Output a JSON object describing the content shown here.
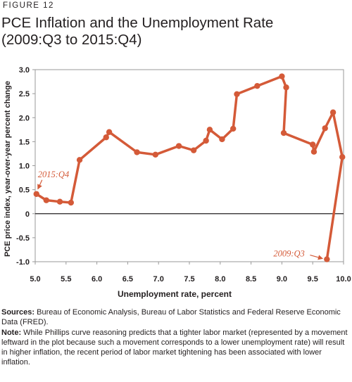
{
  "figure_label": "FIGURE 12",
  "title_line1": "PCE Inflation and the Unemployment Rate",
  "title_line2": "(2009:Q3 to 2015:Q4)",
  "sources_label": "Sources:",
  "sources_text": "Bureau of Economic Analysis, Bureau of Labor Statistics and Federal Reserve Economic Data (FRED).",
  "note_label": "Note:",
  "note_text": "While Phillips curve reasoning predicts that a tighter labor market (represented by a movement leftward in the plot because such a movement corresponds to a lower unemployment rate) will result in higher inflation, the recent period of labor market tightening has been associated with lower inflation.",
  "colors": {
    "line": "#d45a38",
    "annotation": "#d45a38",
    "axis": "#231f20"
  },
  "chart_data": {
    "type": "line",
    "title": "PCE Inflation and the Unemployment Rate",
    "subtitle": "(2009:Q3 to 2015:Q4)",
    "xlabel": "Unemployment rate, percent",
    "ylabel": "PCE price index, year-over-year percent change",
    "xlim": [
      5.0,
      10.0
    ],
    "ylim": [
      -1.0,
      3.0
    ],
    "x_ticks": [
      "5.0",
      "5.5",
      "6.0",
      "6.5",
      "7.0",
      "7.5",
      "8.0",
      "8.5",
      "9.0",
      "9.5",
      "10.0"
    ],
    "y_ticks": [
      "3.0",
      "2.5",
      "2.0",
      "1.5",
      "1.0",
      "0.5",
      "0",
      "-0.5",
      "-1.0"
    ],
    "grid": false,
    "zero_line": true,
    "series": [
      {
        "points": [
          {
            "x": 9.73,
            "y": -0.95
          },
          {
            "x": 9.98,
            "y": 1.18
          },
          {
            "x": 9.83,
            "y": 2.11
          },
          {
            "x": 9.7,
            "y": 1.78
          },
          {
            "x": 9.52,
            "y": 1.29
          },
          {
            "x": 9.5,
            "y": 1.44
          },
          {
            "x": 9.03,
            "y": 1.68
          },
          {
            "x": 9.07,
            "y": 2.63
          },
          {
            "x": 9.0,
            "y": 2.86
          },
          {
            "x": 8.6,
            "y": 2.66
          },
          {
            "x": 8.27,
            "y": 2.49
          },
          {
            "x": 8.21,
            "y": 1.77
          },
          {
            "x": 8.03,
            "y": 1.55
          },
          {
            "x": 7.83,
            "y": 1.75
          },
          {
            "x": 7.77,
            "y": 1.52
          },
          {
            "x": 7.57,
            "y": 1.32
          },
          {
            "x": 7.33,
            "y": 1.41
          },
          {
            "x": 6.95,
            "y": 1.23
          },
          {
            "x": 6.65,
            "y": 1.28
          },
          {
            "x": 6.2,
            "y": 1.7
          },
          {
            "x": 6.15,
            "y": 1.59
          },
          {
            "x": 5.72,
            "y": 1.12
          },
          {
            "x": 5.58,
            "y": 0.23
          },
          {
            "x": 5.4,
            "y": 0.25
          },
          {
            "x": 5.18,
            "y": 0.28
          },
          {
            "x": 5.02,
            "y": 0.41
          }
        ]
      }
    ],
    "annotations": [
      {
        "text": "2015:Q4",
        "x": 5.02,
        "y": 0.41
      },
      {
        "text": "2009:Q3",
        "x": 9.73,
        "y": -0.95
      }
    ]
  }
}
